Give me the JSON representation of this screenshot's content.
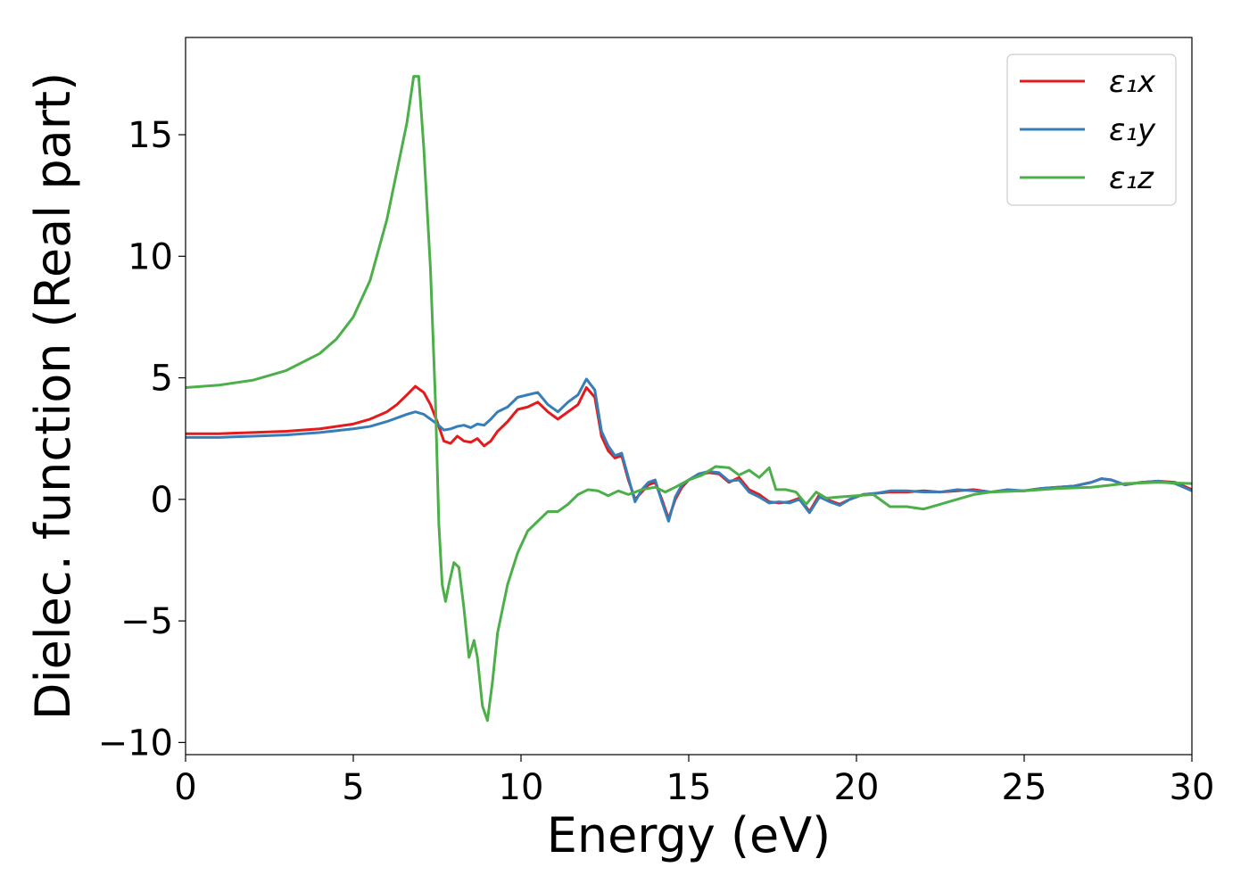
{
  "chart_data": {
    "type": "line",
    "title": "",
    "xlabel": "Energy (eV)",
    "ylabel": "Dielec. function (Real part)",
    "xlim": [
      0,
      30
    ],
    "ylim": [
      -10.5,
      19
    ],
    "xticks": [
      0,
      5,
      10,
      15,
      20,
      25,
      30
    ],
    "xtick_labels": [
      "0",
      "5",
      "10",
      "15",
      "20",
      "25",
      "30"
    ],
    "yticks": [
      -10,
      -5,
      0,
      5,
      10,
      15
    ],
    "ytick_labels": [
      "−10",
      "−5",
      "0",
      "5",
      "10",
      "15"
    ],
    "grid": false,
    "legend_position": "top-right",
    "series": [
      {
        "name": "ε₁x",
        "color": "#e41a1c",
        "x": [
          0,
          1,
          2,
          3,
          4,
          5,
          5.5,
          6,
          6.3,
          6.6,
          6.85,
          7.1,
          7.3,
          7.5,
          7.7,
          7.9,
          8.1,
          8.3,
          8.5,
          8.7,
          8.9,
          9.1,
          9.3,
          9.6,
          9.9,
          10.2,
          10.5,
          10.8,
          11.1,
          11.4,
          11.7,
          11.95,
          12.2,
          12.4,
          12.6,
          12.8,
          13.0,
          13.2,
          13.4,
          13.6,
          13.8,
          14.0,
          14.2,
          14.4,
          14.6,
          14.8,
          15.0,
          15.3,
          15.6,
          15.9,
          16.2,
          16.5,
          16.8,
          17.1,
          17.4,
          17.7,
          18.0,
          18.3,
          18.6,
          18.9,
          19.2,
          19.5,
          19.8,
          20.2,
          20.6,
          21.0,
          21.5,
          22.0,
          22.5,
          23.0,
          23.5,
          24.0,
          24.5,
          25.0,
          25.5,
          26.0,
          26.5,
          27.0,
          27.3,
          27.6,
          28.0,
          28.5,
          29.0,
          29.5,
          30.0
        ],
        "y": [
          2.7,
          2.7,
          2.75,
          2.8,
          2.9,
          3.1,
          3.3,
          3.6,
          3.9,
          4.3,
          4.65,
          4.4,
          3.9,
          3.2,
          2.4,
          2.3,
          2.6,
          2.4,
          2.35,
          2.5,
          2.2,
          2.4,
          2.8,
          3.2,
          3.7,
          3.8,
          4.0,
          3.6,
          3.3,
          3.6,
          3.9,
          4.6,
          4.2,
          2.6,
          2.0,
          1.7,
          1.8,
          0.8,
          0.0,
          0.3,
          0.6,
          0.7,
          0.0,
          -0.8,
          0.0,
          0.5,
          0.8,
          1.0,
          1.1,
          1.05,
          0.7,
          0.9,
          0.4,
          0.2,
          -0.1,
          -0.15,
          -0.1,
          0.05,
          -0.5,
          0.2,
          -0.05,
          -0.2,
          0.0,
          0.2,
          0.25,
          0.3,
          0.3,
          0.35,
          0.3,
          0.35,
          0.4,
          0.3,
          0.35,
          0.35,
          0.45,
          0.5,
          0.55,
          0.7,
          0.85,
          0.8,
          0.6,
          0.7,
          0.75,
          0.7,
          0.4
        ]
      },
      {
        "name": "ε₁y",
        "color": "#377eb8",
        "x": [
          0,
          1,
          2,
          3,
          4,
          5,
          5.5,
          6,
          6.3,
          6.6,
          6.85,
          7.1,
          7.3,
          7.5,
          7.7,
          7.9,
          8.1,
          8.3,
          8.5,
          8.7,
          8.9,
          9.1,
          9.3,
          9.6,
          9.9,
          10.2,
          10.5,
          10.8,
          11.1,
          11.4,
          11.7,
          11.95,
          12.2,
          12.4,
          12.6,
          12.8,
          13.0,
          13.2,
          13.4,
          13.6,
          13.8,
          14.0,
          14.2,
          14.4,
          14.6,
          14.8,
          15.0,
          15.3,
          15.6,
          15.9,
          16.2,
          16.5,
          16.8,
          17.1,
          17.4,
          17.7,
          18.0,
          18.3,
          18.6,
          18.9,
          19.2,
          19.5,
          19.8,
          20.2,
          20.6,
          21.0,
          21.5,
          22.0,
          22.5,
          23.0,
          23.5,
          24.0,
          24.5,
          25.0,
          25.5,
          26.0,
          26.5,
          27.0,
          27.3,
          27.6,
          28.0,
          28.5,
          29.0,
          29.5,
          30.0
        ],
        "y": [
          2.55,
          2.55,
          2.6,
          2.65,
          2.75,
          2.9,
          3.0,
          3.2,
          3.35,
          3.5,
          3.6,
          3.5,
          3.3,
          3.1,
          2.85,
          2.9,
          3.0,
          3.05,
          2.95,
          3.1,
          3.05,
          3.3,
          3.6,
          3.8,
          4.2,
          4.3,
          4.4,
          3.9,
          3.6,
          4.0,
          4.3,
          4.95,
          4.5,
          2.8,
          2.2,
          1.8,
          1.9,
          0.9,
          -0.1,
          0.4,
          0.7,
          0.8,
          -0.1,
          -0.9,
          0.1,
          0.6,
          0.8,
          1.05,
          1.15,
          1.1,
          0.75,
          0.8,
          0.3,
          0.1,
          -0.15,
          -0.1,
          -0.15,
          0.0,
          -0.55,
          0.1,
          -0.1,
          -0.25,
          0.0,
          0.2,
          0.25,
          0.35,
          0.35,
          0.3,
          0.3,
          0.4,
          0.35,
          0.3,
          0.4,
          0.35,
          0.45,
          0.5,
          0.55,
          0.7,
          0.85,
          0.8,
          0.6,
          0.7,
          0.75,
          0.65,
          0.35
        ]
      },
      {
        "name": "ε₁z",
        "color": "#4daf4a",
        "x": [
          0,
          1,
          2,
          3,
          4,
          4.5,
          5,
          5.5,
          6,
          6.3,
          6.6,
          6.8,
          6.95,
          7.1,
          7.3,
          7.45,
          7.55,
          7.65,
          7.75,
          7.85,
          8.0,
          8.15,
          8.3,
          8.45,
          8.6,
          8.7,
          8.85,
          9.0,
          9.15,
          9.3,
          9.6,
          9.9,
          10.2,
          10.5,
          10.8,
          11.1,
          11.4,
          11.7,
          12.0,
          12.3,
          12.6,
          12.9,
          13.2,
          13.6,
          14.0,
          14.3,
          14.6,
          15.0,
          15.4,
          15.8,
          16.2,
          16.5,
          16.8,
          17.1,
          17.4,
          17.6,
          17.9,
          18.2,
          18.5,
          18.8,
          19.1,
          19.5,
          20.0,
          20.5,
          21.0,
          21.5,
          22.0,
          22.5,
          23.0,
          23.5,
          24.0,
          25.0,
          26.0,
          27.0,
          28.0,
          29.0,
          30.0
        ],
        "y": [
          4.6,
          4.7,
          4.9,
          5.3,
          6.0,
          6.6,
          7.5,
          9.0,
          11.5,
          13.5,
          15.5,
          17.4,
          17.4,
          14.5,
          9.5,
          4.0,
          -1.0,
          -3.5,
          -4.2,
          -3.5,
          -2.6,
          -2.8,
          -4.5,
          -6.5,
          -5.8,
          -6.5,
          -8.5,
          -9.1,
          -7.5,
          -5.5,
          -3.5,
          -2.2,
          -1.3,
          -0.9,
          -0.5,
          -0.5,
          -0.2,
          0.2,
          0.4,
          0.35,
          0.15,
          0.35,
          0.2,
          0.4,
          0.5,
          0.3,
          0.5,
          0.8,
          1.0,
          1.35,
          1.3,
          1.0,
          1.2,
          0.9,
          1.3,
          0.4,
          0.4,
          0.3,
          -0.2,
          0.3,
          0.05,
          0.1,
          0.15,
          0.2,
          -0.3,
          -0.3,
          -0.4,
          -0.2,
          0.0,
          0.2,
          0.3,
          0.35,
          0.45,
          0.5,
          0.65,
          0.7,
          0.65
        ]
      }
    ]
  }
}
